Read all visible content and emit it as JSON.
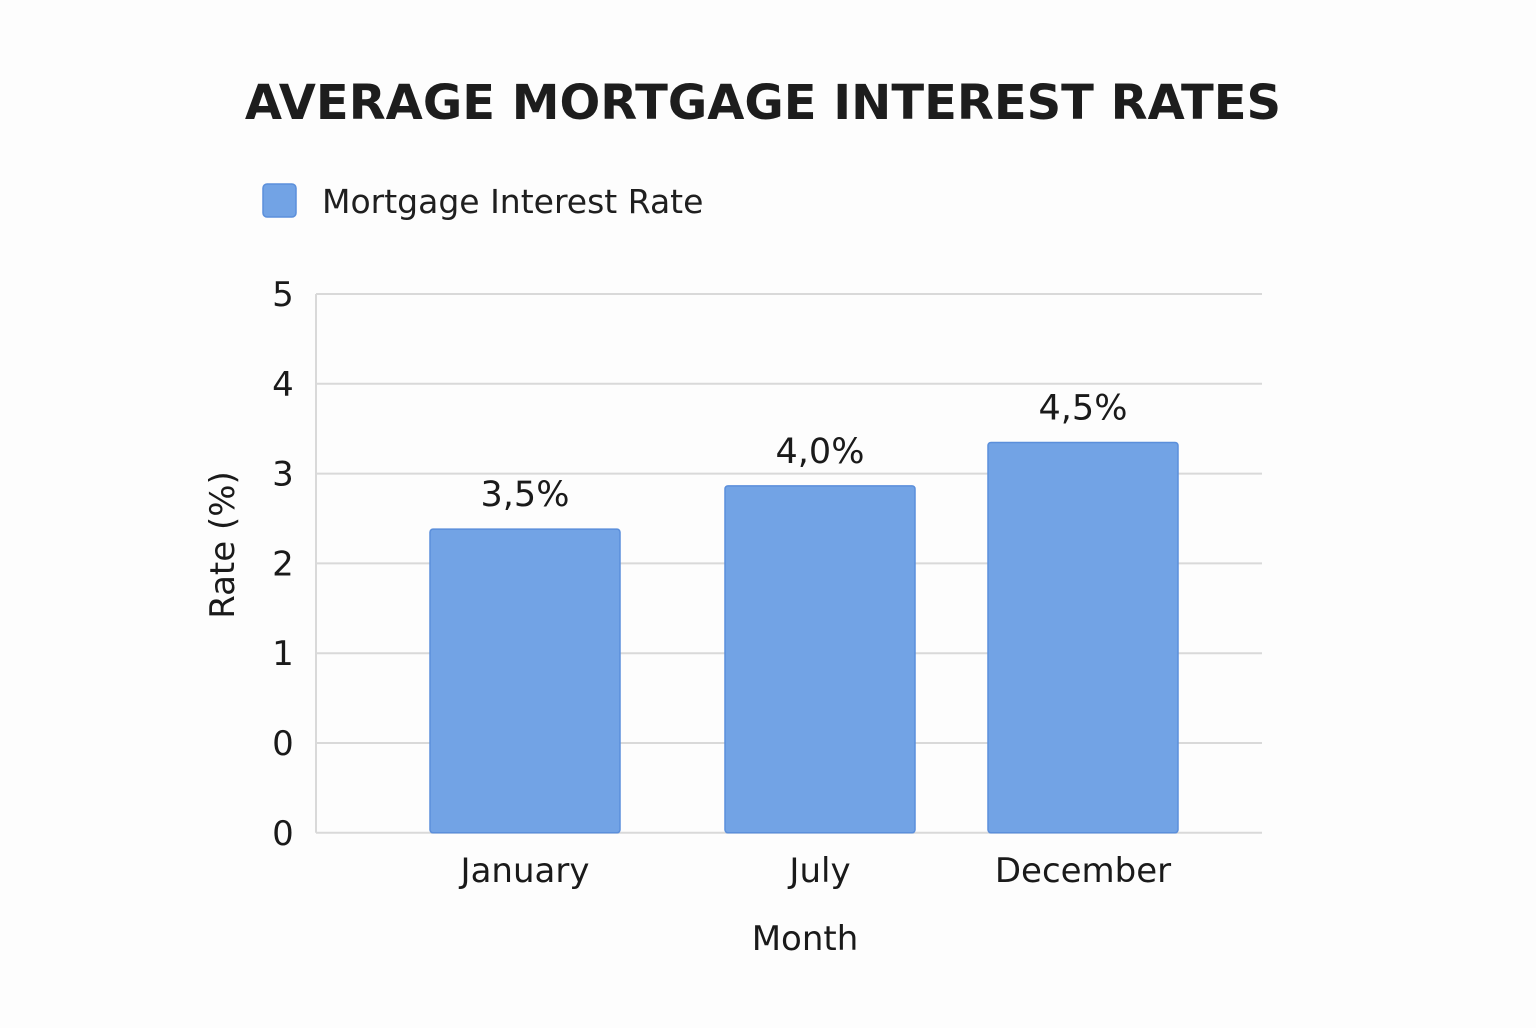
{
  "chart_data": {
    "type": "bar",
    "title": "AVERAGE MORTGAGE INTEREST RATES",
    "xlabel": "Month",
    "ylabel": "Rate (%)",
    "categories": [
      "January",
      "July",
      "December"
    ],
    "series": [
      {
        "name": "Mortgage Interest Rate",
        "values": [
          3.5,
          4.0,
          4.5
        ],
        "data_labels": [
          "3,5%",
          "4,0%",
          "4,5%"
        ],
        "color": "#72a3e5"
      }
    ],
    "y_tick_labels": [
      "0",
      "0",
      "1",
      "2",
      "3",
      "4",
      "5"
    ],
    "ylim": [
      0,
      5
    ],
    "grid": true,
    "legend_position": "top-left"
  },
  "colors": {
    "bar_fill": "#72a3e5",
    "bar_stroke": "#5b8fdb",
    "gridline": "#d9d9d9",
    "background": "#fdfdfd"
  }
}
